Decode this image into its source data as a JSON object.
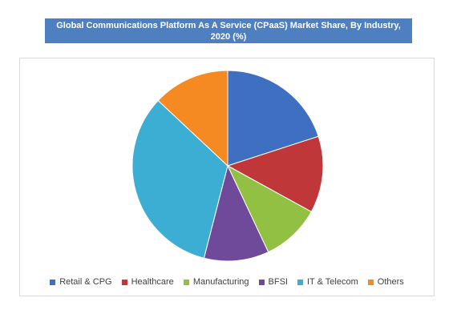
{
  "chart_data": {
    "type": "pie",
    "title": "Global Communications Platform As A Service (CPaaS) Market Share, By Industry, 2020 (%)",
    "categories": [
      "Retail & CPG",
      "Healthcare",
      "Manufacturing",
      "BFSI",
      "IT & Telecom",
      "Others"
    ],
    "values": [
      20,
      13,
      10,
      11,
      33,
      13
    ],
    "colors": [
      "#3f6fc0",
      "#c0373a",
      "#92c042",
      "#6f4a9a",
      "#3caed4",
      "#f68a22"
    ],
    "legend_position": "bottom"
  }
}
